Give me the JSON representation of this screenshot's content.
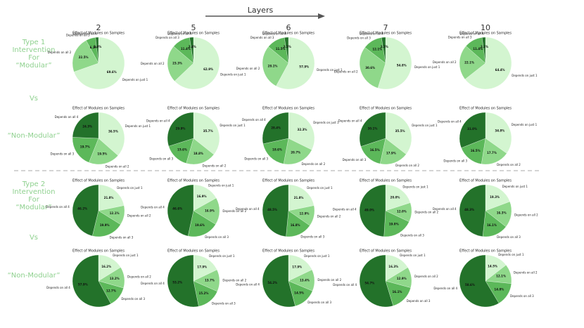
{
  "header": {
    "title": "Layers",
    "columns": [
      "2",
      "5",
      "6",
      "7",
      "10"
    ]
  },
  "side_labels": [
    [
      "Type 1",
      "Intervention",
      "For",
      "“Modular”"
    ],
    [
      "Vs"
    ],
    [
      "“Non-Modular”"
    ],
    [
      "Type 2",
      "Intervention",
      "For",
      "“Modular”"
    ],
    [
      "Vs"
    ],
    [
      "“Non-Modular”"
    ]
  ],
  "chart_data": [
    {
      "type": "pie",
      "title": "Effect of Modules on Samples",
      "categories": [
        "Depends on just 1",
        "Depends on all 2",
        "Depends on all 3",
        "Depends on all 4"
      ],
      "values": [
        69.6,
        22.5,
        6.1,
        1.8
      ],
      "value_labels": [
        "69.6%",
        "22.5%",
        "6.1%",
        "1.8%"
      ],
      "colors": [
        "#d3f5d0",
        "#8fd88a",
        "#5cb85a",
        "#23722a"
      ]
    },
    {
      "type": "pie",
      "title": "Effect of Modules on Samples",
      "categories": [
        "Depends on just 1",
        "Depends on all 2",
        "Depends on all 3",
        "Depends on all 4"
      ],
      "values": [
        62.9,
        23.3,
        11.4,
        2.4
      ],
      "value_labels": [
        "62.9%",
        "23.3%",
        "11.4%",
        "2.4%"
      ],
      "colors": [
        "#d3f5d0",
        "#8fd88a",
        "#5cb85a",
        "#23722a"
      ]
    },
    {
      "type": "pie",
      "title": "Effect of Modules on Samples",
      "categories": [
        "Depends on just 1",
        "Depends on all 2",
        "Depends on all 3",
        "Depends on all 4"
      ],
      "values": [
        57.9,
        28.1,
        11.5,
        2.5
      ],
      "value_labels": [
        "57.9%",
        "28.1%",
        "11.5%",
        "2.5%"
      ],
      "colors": [
        "#d3f5d0",
        "#8fd88a",
        "#5cb85a",
        "#23722a"
      ]
    },
    {
      "type": "pie",
      "title": "Effect of Modules on Samples",
      "categories": [
        "Depends on just 1",
        "Depends on all 2",
        "Depends on all 3",
        "Depends on all 4"
      ],
      "values": [
        54.8,
        30.6,
        12.1,
        2.5
      ],
      "value_labels": [
        "54.8%",
        "30.6%",
        "12.1%",
        "2.5%"
      ],
      "colors": [
        "#d3f5d0",
        "#8fd88a",
        "#5cb85a",
        "#23722a"
      ]
    },
    {
      "type": "pie",
      "title": "Effect of Modules on Samples",
      "categories": [
        "Depends on just 1",
        "Depends on all 2",
        "Depends on all 3",
        "Depends on all 4"
      ],
      "values": [
        64.4,
        22.1,
        11.4,
        2.1
      ],
      "value_labels": [
        "64.4%",
        "22.1%",
        "11.4%",
        "2.1%"
      ],
      "colors": [
        "#d3f5d0",
        "#8fd88a",
        "#5cb85a",
        "#23722a"
      ]
    },
    {
      "type": "pie",
      "title": "Effect of Modules on Samples",
      "categories": [
        "Depends on just 1",
        "Depends on all 2",
        "Depends on all 3",
        "Depends on all 4"
      ],
      "values": [
        36.5,
        19.5,
        19.7,
        24.3
      ],
      "value_labels": [
        "36.5%",
        "19.5%",
        "19.7%",
        "24.3%"
      ],
      "colors": [
        "#d3f5d0",
        "#8fd88a",
        "#5cb85a",
        "#23722a"
      ]
    },
    {
      "type": "pie",
      "title": "Effect of Modules on Samples",
      "categories": [
        "Depends on just 1",
        "Depends on all 2",
        "Depends on all 3",
        "Depends on all 4"
      ],
      "values": [
        35.7,
        18.8,
        15.6,
        29.9
      ],
      "value_labels": [
        "35.7%",
        "18.8%",
        "15.6%",
        "29.9%"
      ],
      "colors": [
        "#d3f5d0",
        "#8fd88a",
        "#5cb85a",
        "#23722a"
      ]
    },
    {
      "type": "pie",
      "title": "Effect of Modules on Samples",
      "categories": [
        "Depends on just 1",
        "Depends on all 2",
        "Depends on all 3",
        "Depends on all 4"
      ],
      "values": [
        32.3,
        20.7,
        18.6,
        28.4
      ],
      "value_labels": [
        "32.3%",
        "20.7%",
        "18.6%",
        "28.4%"
      ],
      "colors": [
        "#d3f5d0",
        "#8fd88a",
        "#5cb85a",
        "#23722a"
      ]
    },
    {
      "type": "pie",
      "title": "Effect of Modules on Samples",
      "categories": [
        "Depends on just 1",
        "Depends on all 2",
        "Depends on all 3",
        "Depends on all 4"
      ],
      "values": [
        35.5,
        17.9,
        16.5,
        30.1
      ],
      "value_labels": [
        "35.5%",
        "17.9%",
        "16.5%",
        "30.1%"
      ],
      "colors": [
        "#d3f5d0",
        "#8fd88a",
        "#5cb85a",
        "#23722a"
      ]
    },
    {
      "type": "pie",
      "title": "Effect of Modules on Samples",
      "categories": [
        "Depends on just 1",
        "Depends on all 2",
        "Depends on all 3",
        "Depends on all 4"
      ],
      "values": [
        34.8,
        17.7,
        16.5,
        31.0
      ],
      "value_labels": [
        "34.8%",
        "17.7%",
        "16.5%",
        "31.0%"
      ],
      "colors": [
        "#d3f5d0",
        "#8fd88a",
        "#5cb85a",
        "#23722a"
      ]
    },
    {
      "type": "pie",
      "title": "Effect of Modules on Samples",
      "categories": [
        "Depends on just 1",
        "Depends on all 2",
        "Depends on all 3",
        "Depends on all 4"
      ],
      "values": [
        21.8,
        12.1,
        19.9,
        46.2
      ],
      "value_labels": [
        "21.8%",
        "12.1%",
        "19.9%",
        "46.2%"
      ],
      "colors": [
        "#d3f5d0",
        "#8fd88a",
        "#5cb85a",
        "#23722a"
      ]
    },
    {
      "type": "pie",
      "title": "Effect of Modules on Samples",
      "categories": [
        "Depends on just 1",
        "Depends on all 2",
        "Depends on all 3",
        "Depends on all 4"
      ],
      "values": [
        16.9,
        16.9,
        19.6,
        46.6
      ],
      "value_labels": [
        "16.9%",
        "16.9%",
        "19.6%",
        "46.6%"
      ],
      "colors": [
        "#d3f5d0",
        "#8fd88a",
        "#5cb85a",
        "#23722a"
      ]
    },
    {
      "type": "pie",
      "title": "Effect of Modules on Samples",
      "categories": [
        "Depends on just 1",
        "Depends on all 2",
        "Depends on all 3",
        "Depends on all 4"
      ],
      "values": [
        21.8,
        12.9,
        16.8,
        48.5
      ],
      "value_labels": [
        "21.8%",
        "12.9%",
        "16.8%",
        "48.5%"
      ],
      "colors": [
        "#d3f5d0",
        "#8fd88a",
        "#5cb85a",
        "#23722a"
      ]
    },
    {
      "type": "pie",
      "title": "Effect of Modules on Samples",
      "categories": [
        "Depends on just 1",
        "Depends on all 2",
        "Depends on all 3",
        "Depends on all 4"
      ],
      "values": [
        20.0,
        12.0,
        19.0,
        49.0
      ],
      "value_labels": [
        "20.0%",
        "12.0%",
        "19.0%",
        "49.0%"
      ],
      "colors": [
        "#d3f5d0",
        "#8fd88a",
        "#5cb85a",
        "#23722a"
      ]
    },
    {
      "type": "pie",
      "title": "Effect of Modules on Samples",
      "categories": [
        "Depends on just 1",
        "Depends on all 2",
        "Depends on all 3",
        "Depends on all 4"
      ],
      "values": [
        19.3,
        16.3,
        16.1,
        48.3
      ],
      "value_labels": [
        "19.3%",
        "16.3%",
        "16.1%",
        "48.3%"
      ],
      "colors": [
        "#d3f5d0",
        "#8fd88a",
        "#5cb85a",
        "#23722a"
      ]
    },
    {
      "type": "pie",
      "title": "Effect of Modules on Samples",
      "categories": [
        "Depends on just 1",
        "Depends on all 2",
        "Depends on all 3",
        "Depends on all 4"
      ],
      "values": [
        16.2,
        13.2,
        12.7,
        57.9
      ],
      "value_labels": [
        "16.2%",
        "13.2%",
        "12.7%",
        "57.9%"
      ],
      "colors": [
        "#d3f5d0",
        "#8fd88a",
        "#5cb85a",
        "#23722a"
      ]
    },
    {
      "type": "pie",
      "title": "Effect of Modules on Samples",
      "categories": [
        "Depends on just 1",
        "Depends on all 2",
        "Depends on all 3",
        "Depends on all 4"
      ],
      "values": [
        17.9,
        13.7,
        15.2,
        53.2
      ],
      "value_labels": [
        "17.9%",
        "13.7%",
        "15.2%",
        "53.2%"
      ],
      "colors": [
        "#d3f5d0",
        "#8fd88a",
        "#5cb85a",
        "#23722a"
      ]
    },
    {
      "type": "pie",
      "title": "Effect of Modules on Samples",
      "categories": [
        "Depends on just 1",
        "Depends on all 2",
        "Depends on all 3",
        "Depends on all 4"
      ],
      "values": [
        17.9,
        13.4,
        14.5,
        54.2
      ],
      "value_labels": [
        "17.9%",
        "13.4%",
        "14.5%",
        "54.2%"
      ],
      "colors": [
        "#d3f5d0",
        "#8fd88a",
        "#5cb85a",
        "#23722a"
      ]
    },
    {
      "type": "pie",
      "title": "Effect of Modules on Samples",
      "categories": [
        "Depends on just 1",
        "Depends on all 2",
        "Depends on all 3",
        "Depends on all 4"
      ],
      "values": [
        16.3,
        12.9,
        16.1,
        54.7
      ],
      "value_labels": [
        "16.3%",
        "12.9%",
        "16.1%",
        "54.7%"
      ],
      "colors": [
        "#d3f5d0",
        "#8fd88a",
        "#5cb85a",
        "#23722a"
      ]
    },
    {
      "type": "pie",
      "title": "Effect of Modules on Samples",
      "categories": [
        "Depends on just 1",
        "Depends on all 2",
        "Depends on all 3",
        "Depends on all 4"
      ],
      "values": [
        14.5,
        12.1,
        14.8,
        58.6
      ],
      "value_labels": [
        "14.5%",
        "12.1%",
        "14.8%",
        "58.6%"
      ],
      "colors": [
        "#d3f5d0",
        "#8fd88a",
        "#5cb85a",
        "#23722a"
      ]
    }
  ]
}
